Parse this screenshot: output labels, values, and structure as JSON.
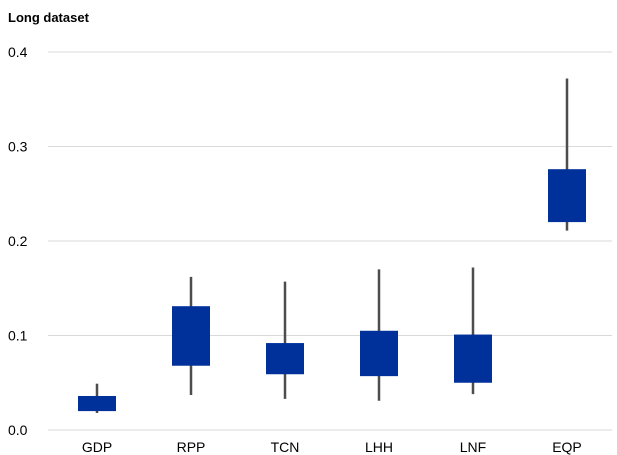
{
  "chart_data": {
    "type": "boxplot",
    "title": "Long dataset",
    "xlabel": "",
    "ylabel": "",
    "ylim": [
      0,
      0.4
    ],
    "yticks": [
      "0.0",
      "0.1",
      "0.2",
      "0.3",
      "0.4"
    ],
    "ytick_values": [
      0,
      0.1,
      0.2,
      0.3,
      0.4
    ],
    "grid": true,
    "categories": [
      "GDP",
      "RPP",
      "TCN",
      "LHH",
      "LNF",
      "EQP"
    ],
    "boxes": [
      {
        "category": "GDP",
        "whisker_low": 0.018,
        "box_low": 0.02,
        "box_high": 0.036,
        "whisker_high": 0.049
      },
      {
        "category": "RPP",
        "whisker_low": 0.037,
        "box_low": 0.068,
        "box_high": 0.131,
        "whisker_high": 0.162
      },
      {
        "category": "TCN",
        "whisker_low": 0.033,
        "box_low": 0.059,
        "box_high": 0.092,
        "whisker_high": 0.157
      },
      {
        "category": "LHH",
        "whisker_low": 0.031,
        "box_low": 0.057,
        "box_high": 0.105,
        "whisker_high": 0.17
      },
      {
        "category": "LNF",
        "whisker_low": 0.038,
        "box_low": 0.05,
        "box_high": 0.101,
        "whisker_high": 0.172
      },
      {
        "category": "EQP",
        "whisker_low": 0.211,
        "box_low": 0.22,
        "box_high": 0.276,
        "whisker_high": 0.372
      }
    ],
    "colors": {
      "box": "#00309a",
      "whisker": "#4d4d4d",
      "grid": "#d9d9d9"
    }
  }
}
